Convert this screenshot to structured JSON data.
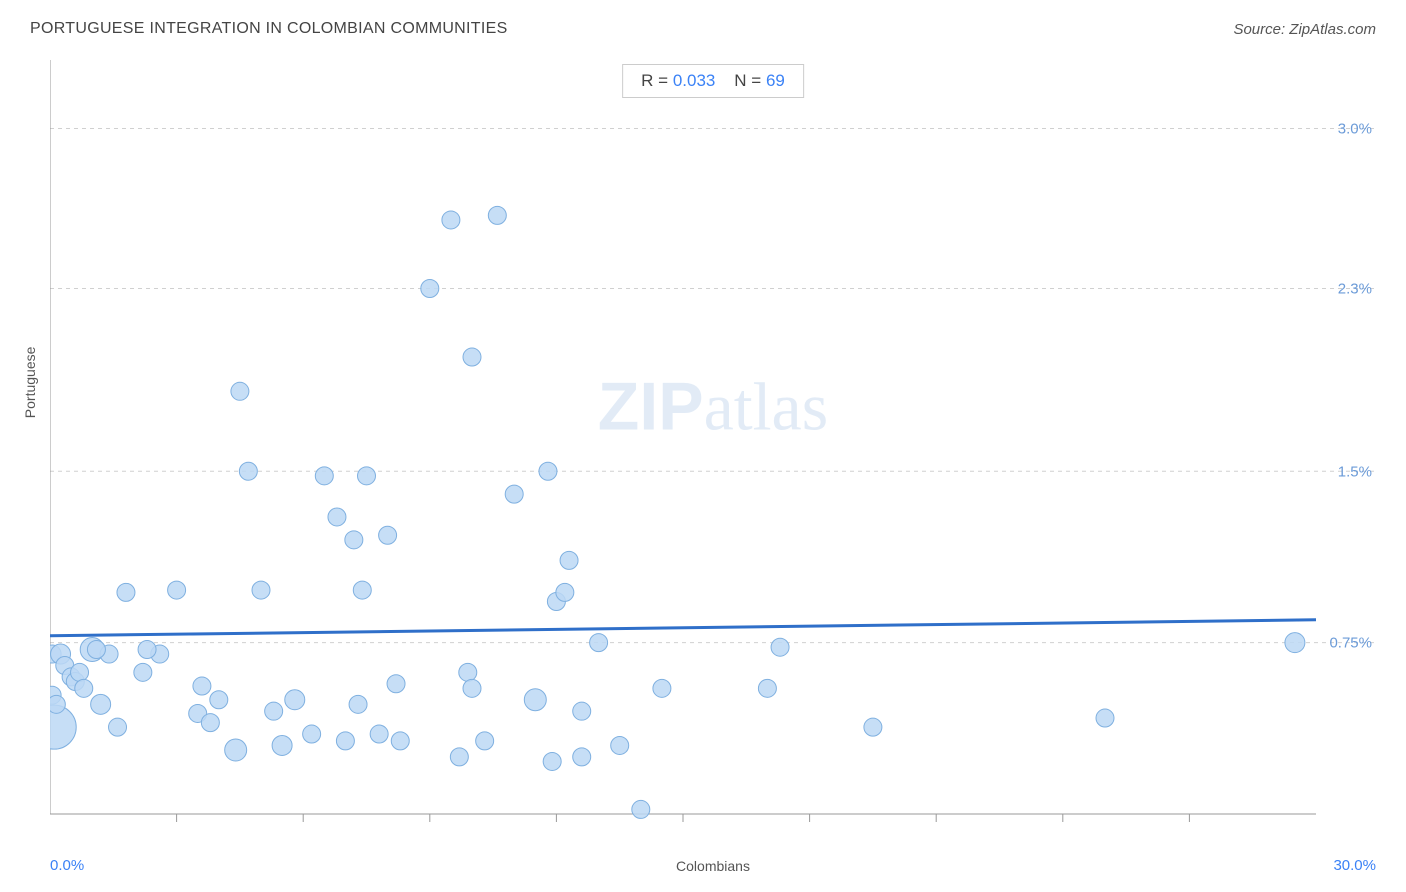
{
  "header": {
    "title": "PORTUGUESE INTEGRATION IN COLOMBIAN COMMUNITIES",
    "source": "Source: ZipAtlas.com"
  },
  "chart": {
    "type": "scatter",
    "xlabel": "Colombians",
    "ylabel": "Portuguese",
    "xlim": [
      0,
      30
    ],
    "ylim": [
      0,
      3.3
    ],
    "x_axis_min_label": "0.0%",
    "x_axis_max_label": "30.0%",
    "x_axis_label_color": "#3b82f6",
    "y_ticks": [
      {
        "value": 0.75,
        "label": "0.75%"
      },
      {
        "value": 1.5,
        "label": "1.5%"
      },
      {
        "value": 2.3,
        "label": "2.3%"
      },
      {
        "value": 3.0,
        "label": "3.0%"
      }
    ],
    "y_tick_color": "#6b9bd8",
    "x_minor_ticks": [
      3,
      6,
      9,
      12,
      15,
      18,
      21,
      24,
      27
    ],
    "grid_color": "#d0d0d0",
    "grid_dash": "4,4",
    "axis_color": "#999",
    "background_color": "#ffffff",
    "watermark": "ZIPatlas",
    "stats": {
      "r_label": "R =",
      "r_value": "0.033",
      "n_label": "N =",
      "n_value": "69"
    },
    "bubble_fill": "#bcd8f5",
    "bubble_stroke": "#7fb0e0",
    "bubble_opacity": 0.85,
    "trend_line": {
      "color": "#2f6fc9",
      "width": 3,
      "x1": 0,
      "y1": 0.78,
      "x2": 30,
      "y2": 0.85
    },
    "points": [
      {
        "x": 0.1,
        "y": 0.38,
        "r": 22
      },
      {
        "x": 0.05,
        "y": 0.7,
        "r": 9
      },
      {
        "x": 0.25,
        "y": 0.7,
        "r": 10
      },
      {
        "x": 0.35,
        "y": 0.65,
        "r": 9
      },
      {
        "x": 0.5,
        "y": 0.6,
        "r": 9
      },
      {
        "x": 0.6,
        "y": 0.58,
        "r": 9
      },
      {
        "x": 0.7,
        "y": 0.62,
        "r": 9
      },
      {
        "x": 0.8,
        "y": 0.55,
        "r": 9
      },
      {
        "x": 0.05,
        "y": 0.52,
        "r": 9
      },
      {
        "x": 0.15,
        "y": 0.48,
        "r": 9
      },
      {
        "x": 1.0,
        "y": 0.72,
        "r": 12
      },
      {
        "x": 1.2,
        "y": 0.48,
        "r": 10
      },
      {
        "x": 1.4,
        "y": 0.7,
        "r": 9
      },
      {
        "x": 1.6,
        "y": 0.38,
        "r": 9
      },
      {
        "x": 1.8,
        "y": 0.97,
        "r": 9
      },
      {
        "x": 1.1,
        "y": 0.72,
        "r": 9
      },
      {
        "x": 2.2,
        "y": 0.62,
        "r": 9
      },
      {
        "x": 2.6,
        "y": 0.7,
        "r": 9
      },
      {
        "x": 2.3,
        "y": 0.72,
        "r": 9
      },
      {
        "x": 3.0,
        "y": 0.98,
        "r": 9
      },
      {
        "x": 3.5,
        "y": 0.44,
        "r": 9
      },
      {
        "x": 3.6,
        "y": 0.56,
        "r": 9
      },
      {
        "x": 3.8,
        "y": 0.4,
        "r": 9
      },
      {
        "x": 4.0,
        "y": 0.5,
        "r": 9
      },
      {
        "x": 4.5,
        "y": 1.85,
        "r": 9
      },
      {
        "x": 4.7,
        "y": 1.5,
        "r": 9
      },
      {
        "x": 4.4,
        "y": 0.28,
        "r": 11
      },
      {
        "x": 5.0,
        "y": 0.98,
        "r": 9
      },
      {
        "x": 5.3,
        "y": 0.45,
        "r": 9
      },
      {
        "x": 5.5,
        "y": 0.3,
        "r": 10
      },
      {
        "x": 5.8,
        "y": 0.5,
        "r": 10
      },
      {
        "x": 6.2,
        "y": 0.35,
        "r": 9
      },
      {
        "x": 6.5,
        "y": 1.48,
        "r": 9
      },
      {
        "x": 6.8,
        "y": 1.3,
        "r": 9
      },
      {
        "x": 7.0,
        "y": 0.32,
        "r": 9
      },
      {
        "x": 7.2,
        "y": 1.2,
        "r": 9
      },
      {
        "x": 7.3,
        "y": 0.48,
        "r": 9
      },
      {
        "x": 7.4,
        "y": 0.98,
        "r": 9
      },
      {
        "x": 7.5,
        "y": 1.48,
        "r": 9
      },
      {
        "x": 7.8,
        "y": 0.35,
        "r": 9
      },
      {
        "x": 8.0,
        "y": 1.22,
        "r": 9
      },
      {
        "x": 8.2,
        "y": 0.57,
        "r": 9
      },
      {
        "x": 8.3,
        "y": 0.32,
        "r": 9
      },
      {
        "x": 9.0,
        "y": 2.3,
        "r": 9
      },
      {
        "x": 9.5,
        "y": 2.6,
        "r": 9
      },
      {
        "x": 9.7,
        "y": 0.25,
        "r": 9
      },
      {
        "x": 9.9,
        "y": 0.62,
        "r": 9
      },
      {
        "x": 10.0,
        "y": 2.0,
        "r": 9
      },
      {
        "x": 10.0,
        "y": 0.55,
        "r": 9
      },
      {
        "x": 10.3,
        "y": 0.32,
        "r": 9
      },
      {
        "x": 10.6,
        "y": 2.62,
        "r": 9
      },
      {
        "x": 11.0,
        "y": 1.4,
        "r": 9
      },
      {
        "x": 11.5,
        "y": 0.5,
        "r": 11
      },
      {
        "x": 11.8,
        "y": 1.5,
        "r": 9
      },
      {
        "x": 12.0,
        "y": 0.93,
        "r": 9
      },
      {
        "x": 11.9,
        "y": 0.23,
        "r": 9
      },
      {
        "x": 12.2,
        "y": 0.97,
        "r": 9
      },
      {
        "x": 12.6,
        "y": 0.45,
        "r": 9
      },
      {
        "x": 12.3,
        "y": 1.11,
        "r": 9
      },
      {
        "x": 13.0,
        "y": 0.75,
        "r": 9
      },
      {
        "x": 12.6,
        "y": 0.25,
        "r": 9
      },
      {
        "x": 13.5,
        "y": 0.3,
        "r": 9
      },
      {
        "x": 14.0,
        "y": 0.02,
        "r": 9
      },
      {
        "x": 14.5,
        "y": 0.55,
        "r": 9
      },
      {
        "x": 17.0,
        "y": 0.55,
        "r": 9
      },
      {
        "x": 17.3,
        "y": 0.73,
        "r": 9
      },
      {
        "x": 19.5,
        "y": 0.38,
        "r": 9
      },
      {
        "x": 25.0,
        "y": 0.42,
        "r": 9
      },
      {
        "x": 29.5,
        "y": 0.75,
        "r": 10
      }
    ]
  }
}
